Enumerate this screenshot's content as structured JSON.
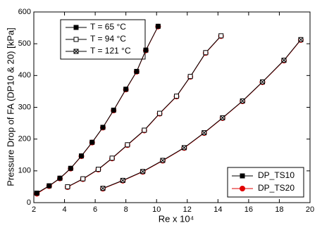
{
  "chart_data": {
    "type": "line",
    "ylabel": "Pressure Drop of FA (DP10 & 20) [kPa]",
    "xlabel": "Re x 10⁴",
    "xlim": [
      2,
      20
    ],
    "xticks": [
      2,
      4,
      6,
      8,
      10,
      12,
      14,
      16,
      18,
      20
    ],
    "ylim": [
      0,
      600
    ],
    "yticks": [
      0,
      100,
      200,
      300,
      400,
      500,
      600
    ],
    "series": [
      {
        "name": "DP_TS10",
        "color": "#000000",
        "marker": "square",
        "curves": [
          {
            "name": "T = 65 °C",
            "fill": "filled",
            "x": [
              2.2,
              3.0,
              3.7,
              4.4,
              5.1,
              5.8,
              6.5,
              7.2,
              8.0,
              8.7,
              9.3,
              10.1
            ],
            "values": [
              30,
              53,
              77,
              108,
              147,
              190,
              237,
              291,
              357,
              413,
              480,
              555
            ]
          },
          {
            "name": "T = 94 °C",
            "fill": "open",
            "x": [
              4.2,
              5.2,
              6.2,
              7.1,
              8.1,
              9.2,
              10.2,
              11.3,
              12.2,
              13.2,
              14.2
            ],
            "values": [
              50,
              75,
              105,
              140,
              182,
              228,
              281,
              335,
              397,
              472,
              525
            ]
          },
          {
            "name": "T = 121 °C",
            "fill": "crossed",
            "x": [
              6.5,
              7.8,
              9.1,
              10.4,
              11.8,
              13.1,
              14.3,
              15.6,
              16.9,
              18.3,
              19.4
            ],
            "values": [
              45,
              70,
              98,
              133,
              173,
              220,
              267,
              320,
              380,
              448,
              513
            ]
          }
        ]
      },
      {
        "name": "DP_TS20",
        "color": "#e00000",
        "marker": "circle",
        "curves": [
          {
            "x": [
              2.2,
              3.0,
              3.7,
              4.4,
              5.1,
              5.8,
              6.5,
              7.2,
              8.0,
              8.7,
              9.3,
              10.1
            ],
            "values": [
              28,
              52,
              76,
              107,
              146,
              189,
              236,
              290,
              356,
              412,
              479,
              554
            ]
          },
          {
            "x": [
              4.2,
              5.2,
              6.2,
              7.1,
              8.1,
              9.2,
              10.2,
              11.3,
              12.2,
              13.2,
              14.2
            ],
            "values": [
              49,
              74,
              104,
              139,
              181,
              227,
              280,
              334,
              396,
              471,
              524
            ]
          },
          {
            "x": [
              6.5,
              7.8,
              9.1,
              10.4,
              11.8,
              13.1,
              14.3,
              15.6,
              16.9,
              18.3,
              19.4
            ],
            "values": [
              44,
              69,
              97,
              132,
              172,
              219,
              266,
              319,
              379,
              447,
              512
            ]
          }
        ]
      }
    ]
  }
}
